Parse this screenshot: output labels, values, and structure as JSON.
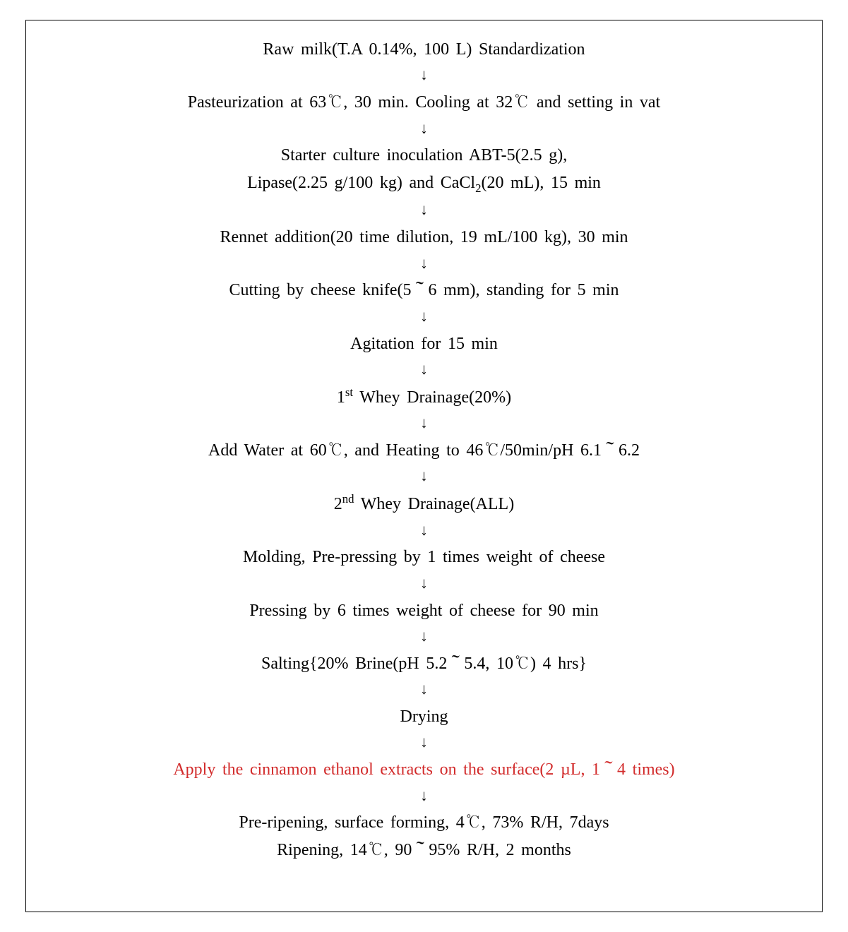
{
  "diagram": {
    "type": "flowchart",
    "layout": "vertical",
    "arrow_glyph": "↓",
    "border_color": "#000000",
    "background_color": "#ffffff",
    "text_color": "#000000",
    "highlight_color": "#d22b2b",
    "font_family": "Times New Roman / Batang serif",
    "font_size_pt": 18,
    "arrow_font_size_pt": 16,
    "word_spacing_em": 0.15,
    "steps": [
      {
        "lines": [
          "Raw milk(T.A 0.14%, 100 L) Standardization"
        ],
        "highlight": false
      },
      {
        "lines": [
          "Pasteurization at 63℃, 30 min. Cooling at 32℃ and setting in vat"
        ],
        "highlight": false
      },
      {
        "lines": [
          "Starter culture inoculation ABT-5(2.5 g),",
          "Lipase(2.25 g/100 kg) and CaCl₂(20 mL), 15 min"
        ],
        "highlight": false
      },
      {
        "lines": [
          "Rennet addition(20 time dilution, 19 mL/100 kg), 30 min"
        ],
        "highlight": false
      },
      {
        "lines": [
          "Cutting by cheese knife(5～6 mm), standing for 5 min"
        ],
        "highlight": false
      },
      {
        "lines": [
          "Agitation for 15 min"
        ],
        "highlight": false
      },
      {
        "lines": [
          "1ˢᵗ Whey Drainage(20%)"
        ],
        "highlight": false
      },
      {
        "lines": [
          "Add Water at 60℃, and Heating to 46℃/50min/pH 6.1～6.2"
        ],
        "highlight": false
      },
      {
        "lines": [
          "2ⁿᵈ Whey Drainage(ALL)"
        ],
        "highlight": false
      },
      {
        "lines": [
          "Molding, Pre-pressing by 1 times weight of cheese"
        ],
        "highlight": false
      },
      {
        "lines": [
          "Pressing by 6 times weight of cheese for 90 min"
        ],
        "highlight": false
      },
      {
        "lines": [
          "Salting{20% Brine(pH 5.2～5.4, 10℃) 4 hrs}"
        ],
        "highlight": false
      },
      {
        "lines": [
          "Drying"
        ],
        "highlight": false
      },
      {
        "lines": [
          "Apply the cinnamon ethanol extracts on the surface(2 µL, 1～4 times)"
        ],
        "highlight": true
      },
      {
        "lines": [
          "Pre-ripening, surface forming, 4℃, 73% R/H, 7days",
          "Ripening, 14℃, 90～95% R/H, 2 months"
        ],
        "highlight": false
      }
    ]
  }
}
